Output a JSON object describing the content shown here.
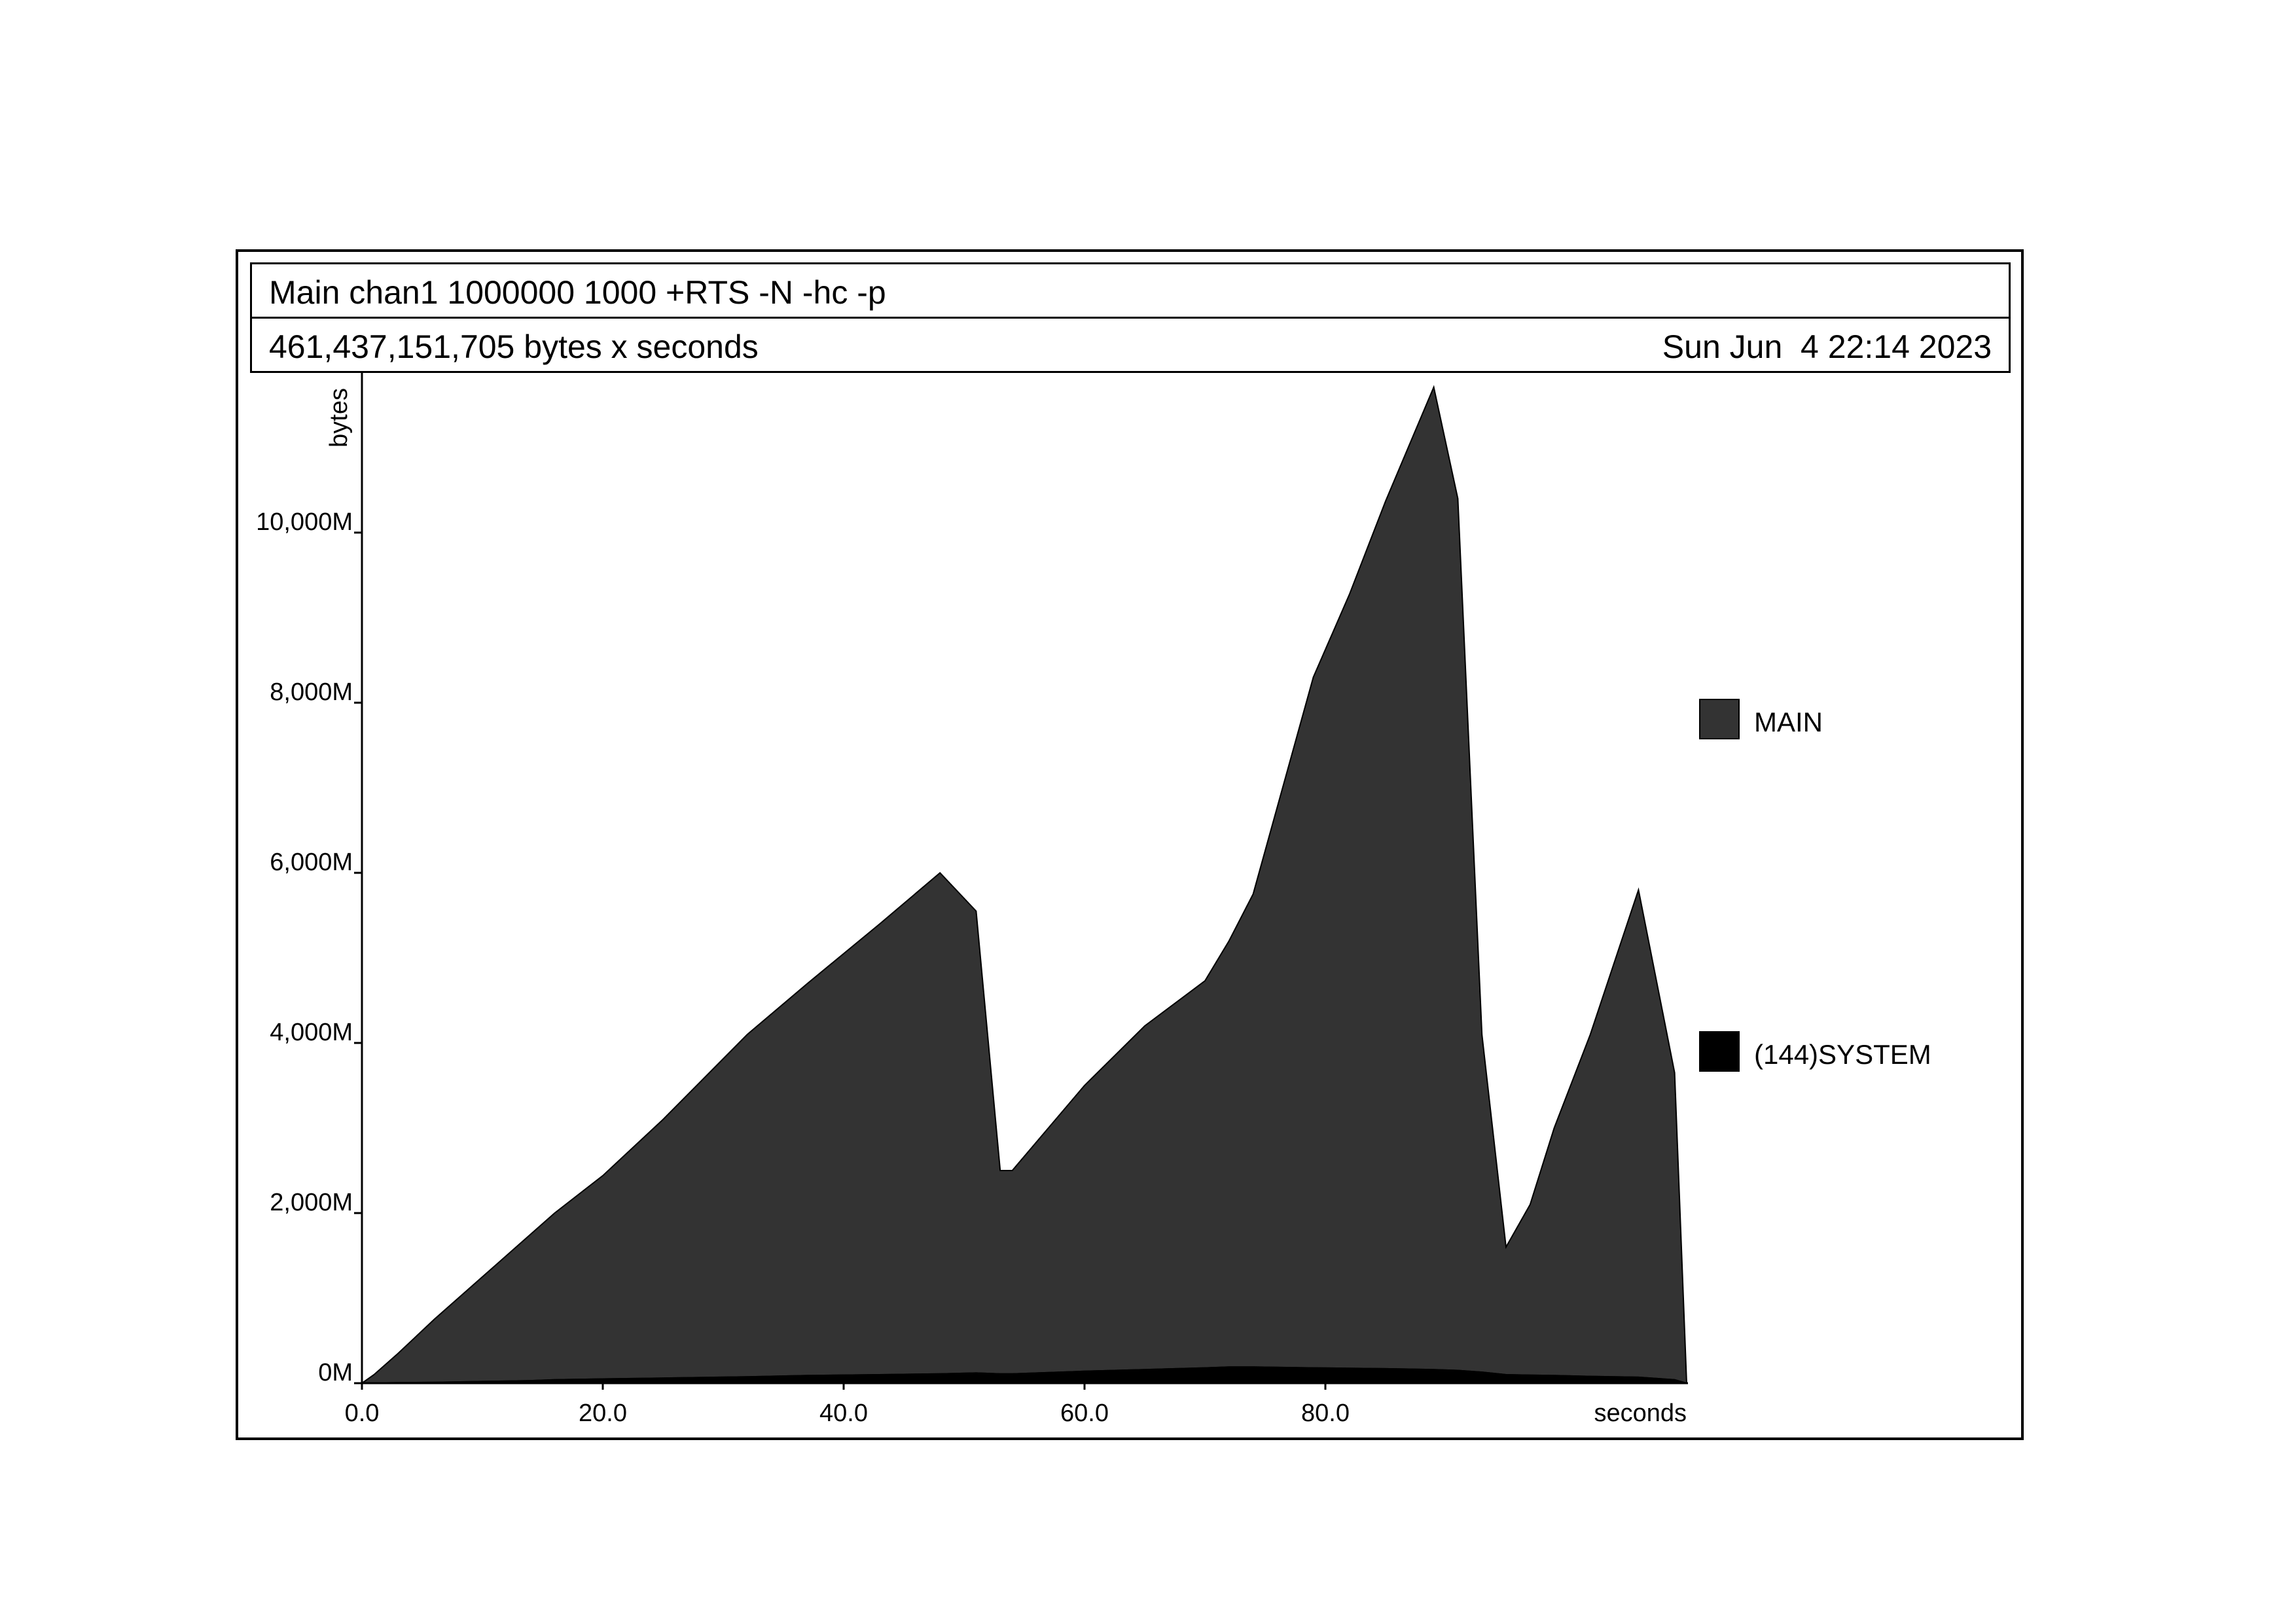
{
  "header": {
    "title": "Main chan1 1000000 1000 +RTS -N -hc -p",
    "summary": "461,437,151,705 bytes x seconds",
    "timestamp": "Sun Jun  4 22:14 2023"
  },
  "colors": {
    "main": "#333333",
    "system": "#000000"
  },
  "chart_data": {
    "type": "area",
    "stacked": true,
    "xlabel": "seconds",
    "ylabel": "bytes",
    "xlim": [
      0,
      110
    ],
    "ylim": [
      0,
      11800
    ],
    "y_unit": "M bytes",
    "x_ticks": [
      "0.0",
      "20.0",
      "40.0",
      "60.0",
      "80.0"
    ],
    "x_tick_values": [
      0,
      20,
      40,
      60,
      80
    ],
    "y_ticks": [
      "0M",
      "2,000M",
      "4,000M",
      "6,000M",
      "8,000M",
      "10,000M"
    ],
    "y_tick_values": [
      0,
      2000,
      4000,
      6000,
      8000,
      10000
    ],
    "legend_position": "right",
    "x": [
      0,
      1,
      3,
      6,
      10,
      14,
      16,
      20,
      25,
      32,
      37,
      43,
      48,
      51,
      53,
      54,
      60,
      65,
      70,
      72,
      74,
      79,
      82,
      85,
      89,
      91,
      93,
      95,
      97,
      99,
      102,
      106,
      109,
      110
    ],
    "series": [
      {
        "name": "(144)SYSTEM",
        "values": [
          0,
          2,
          6,
          10,
          20,
          30,
          40,
          50,
          60,
          75,
          90,
          100,
          110,
          120,
          110,
          110,
          140,
          160,
          180,
          190,
          190,
          180,
          175,
          170,
          160,
          150,
          130,
          100,
          95,
          90,
          80,
          70,
          40,
          0
        ]
      },
      {
        "name": "MAIN",
        "values": [
          0,
          98,
          344,
          740,
          1230,
          1720,
          1960,
          2390,
          3040,
          4025,
          4610,
          5300,
          5890,
          5430,
          2390,
          2390,
          3360,
          4040,
          4550,
          5010,
          5560,
          8120,
          9100,
          10200,
          11550,
          10250,
          3970,
          1500,
          2005,
          2910,
          4020,
          5730,
          3610,
          0
        ]
      }
    ]
  },
  "legend": [
    {
      "label": "MAIN",
      "color": "#333333"
    },
    {
      "label": "(144)SYSTEM",
      "color": "#000000"
    }
  ]
}
